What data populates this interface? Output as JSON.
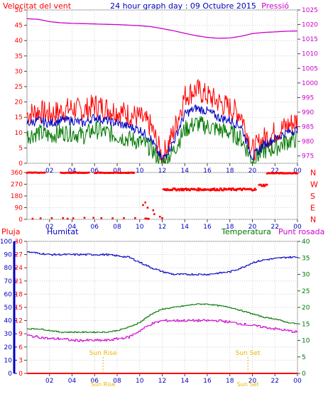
{
  "colors": {
    "wind": "#ff0000",
    "gust": "#ff0000",
    "pressure": "#cc00cc",
    "direction": "#ff0000",
    "humidity": "#0000c0",
    "temperature": "#007700",
    "dewpoint": "#cc00cc",
    "rain": "#0000c0",
    "rain_line": "#ff0000",
    "sun": "#e6b800",
    "grid": "#d0d0d0",
    "axis": "#000000"
  },
  "chart_data": [
    {
      "type": "line",
      "title": "24 hour graph day : 09 Octubre 2015",
      "left_label": "Velocitat del vent",
      "right_label": "Pressió",
      "x_ticks": [
        "02",
        "04",
        "06",
        "08",
        "10",
        "12",
        "14",
        "16",
        "18",
        "20",
        "22",
        "00"
      ],
      "y_left_ticks": [
        0,
        5,
        10,
        15,
        20,
        25,
        30,
        35,
        40,
        45,
        50
      ],
      "y_right_ticks": [
        975,
        980,
        985,
        990,
        995,
        1000,
        1005,
        1010,
        1015,
        1020,
        1025
      ],
      "ylim_left": [
        0,
        50
      ],
      "ylim_right": [
        972.5,
        1025
      ],
      "x_hours": [
        0,
        1,
        2,
        3,
        4,
        5,
        6,
        7,
        8,
        9,
        10,
        11,
        12,
        13,
        14,
        15,
        16,
        17,
        18,
        19,
        20,
        21,
        22,
        23,
        24
      ],
      "series": [
        {
          "key": "gust",
          "values": [
            16,
            17,
            16,
            17,
            18,
            17,
            19,
            18,
            17,
            16,
            15,
            12,
            2,
            10,
            22,
            24,
            22,
            20,
            18,
            16,
            4,
            8,
            10,
            12,
            14
          ]
        },
        {
          "key": "speed",
          "values": [
            13,
            14,
            13,
            14,
            14,
            13,
            15,
            14,
            13,
            12,
            11,
            8,
            1,
            7,
            16,
            18,
            17,
            15,
            14,
            12,
            2,
            6,
            8,
            10,
            11
          ]
        },
        {
          "key": "green",
          "values": [
            9,
            10,
            9,
            10,
            10,
            9,
            11,
            10,
            9,
            8,
            7,
            5,
            0,
            4,
            11,
            13,
            12,
            11,
            10,
            8,
            1,
            4,
            5,
            7,
            8
          ]
        },
        {
          "key": "pressure",
          "values": [
            1022,
            1021.8,
            1021,
            1020.6,
            1020.4,
            1020.3,
            1020.2,
            1020.1,
            1020,
            1019.8,
            1019.6,
            1019.3,
            1018.6,
            1017.9,
            1017,
            1016.2,
            1015.6,
            1015.3,
            1015.4,
            1016,
            1016.9,
            1017.3,
            1017.5,
            1017.7,
            1017.8
          ]
        }
      ]
    },
    {
      "type": "scatter",
      "y_ticks": [
        0,
        90,
        180,
        270,
        360
      ],
      "y_right_labels": [
        "N",
        "W",
        "S",
        "E",
        "N"
      ],
      "ylim": [
        0,
        360
      ],
      "x_ticks": [
        "02",
        "04",
        "06",
        "08",
        "10",
        "12",
        "14",
        "16",
        "18",
        "20",
        "22",
        "00"
      ],
      "segments": [
        {
          "from": 0,
          "to": 1.6,
          "dir": 360
        },
        {
          "from": 3,
          "to": 5.5,
          "dir": 358
        },
        {
          "from": 6,
          "to": 9.5,
          "dir": 358
        },
        {
          "from": 10.5,
          "to": 10.8,
          "dir": 5
        },
        {
          "from": 12.1,
          "to": 20.3,
          "dir": 230
        },
        {
          "from": 20.6,
          "to": 21.3,
          "dir": 262
        },
        {
          "from": 21.3,
          "to": 24,
          "dir": 355
        }
      ],
      "scatter_points": [
        {
          "x": 0.5,
          "y": 5
        },
        {
          "x": 1.2,
          "y": 8
        },
        {
          "x": 2.2,
          "y": 10
        },
        {
          "x": 3.2,
          "y": 10
        },
        {
          "x": 3.6,
          "y": 5
        },
        {
          "x": 4.1,
          "y": 8
        },
        {
          "x": 5.1,
          "y": 12
        },
        {
          "x": 5.9,
          "y": 12
        },
        {
          "x": 6.6,
          "y": 10
        },
        {
          "x": 7.6,
          "y": 8
        },
        {
          "x": 8.6,
          "y": 10
        },
        {
          "x": 9.6,
          "y": 10
        },
        {
          "x": 10.3,
          "y": 110
        },
        {
          "x": 10.5,
          "y": 130
        },
        {
          "x": 10.7,
          "y": 90
        },
        {
          "x": 11.2,
          "y": 70
        },
        {
          "x": 11.3,
          "y": 40
        },
        {
          "x": 11.8,
          "y": 20
        },
        {
          "x": 12.0,
          "y": 10
        }
      ]
    },
    {
      "type": "line",
      "left_label": "Pluja",
      "left_label2": "Humitat",
      "right_label": "Temperatura",
      "right_label2": "Punt rosada",
      "x_ticks": [
        "02",
        "04",
        "06",
        "08",
        "10",
        "12",
        "14",
        "16",
        "18",
        "20",
        "22",
        "00"
      ],
      "y_humidity_ticks": [
        0,
        10,
        20,
        30,
        40,
        50,
        60,
        70,
        80,
        90,
        100
      ],
      "y_rain_ticks": [
        0,
        3,
        6,
        9,
        12,
        15,
        18,
        21,
        24,
        27,
        30
      ],
      "y_temp_ticks": [
        0,
        5,
        10,
        15,
        20,
        25,
        30,
        35,
        40
      ],
      "ylim_humidity": [
        0,
        100
      ],
      "ylim_temp": [
        0,
        40
      ],
      "x_hours": [
        0,
        1,
        2,
        3,
        4,
        5,
        6,
        7,
        8,
        9,
        10,
        11,
        12,
        13,
        14,
        15,
        16,
        17,
        18,
        19,
        20,
        21,
        22,
        23,
        24
      ],
      "series": [
        {
          "key": "humidity",
          "values": [
            92,
            91,
            90,
            90,
            90,
            90,
            90,
            90,
            89,
            88,
            84,
            80,
            77,
            75,
            75,
            75,
            75,
            76,
            77,
            80,
            84,
            86,
            87,
            88,
            88
          ]
        },
        {
          "key": "temperature",
          "values": [
            13.5,
            13.5,
            13,
            12.5,
            12.5,
            12.5,
            12.5,
            12.5,
            13,
            14,
            15.5,
            18,
            19.5,
            20,
            20.5,
            21,
            21,
            20.5,
            20,
            19,
            18,
            17,
            16.5,
            15.5,
            15
          ]
        },
        {
          "key": "dewpoint",
          "values": [
            11.5,
            11,
            10.5,
            10.5,
            10,
            10,
            10,
            10,
            10.5,
            11,
            13,
            15,
            16,
            16,
            16,
            16,
            16,
            16,
            15.5,
            15,
            14.5,
            14,
            13.5,
            13,
            12.5
          ]
        },
        {
          "key": "rain",
          "values": [
            0,
            0,
            0,
            0,
            0,
            0,
            0,
            0,
            0,
            0,
            0,
            0,
            0,
            0,
            0,
            0,
            0,
            0,
            0,
            0,
            0,
            0,
            0,
            0,
            0
          ]
        }
      ],
      "sun_rise": {
        "label": "Sun Rise",
        "x": 6.75
      },
      "sun_set": {
        "label": "Sun Set",
        "x": 19.6
      }
    }
  ]
}
